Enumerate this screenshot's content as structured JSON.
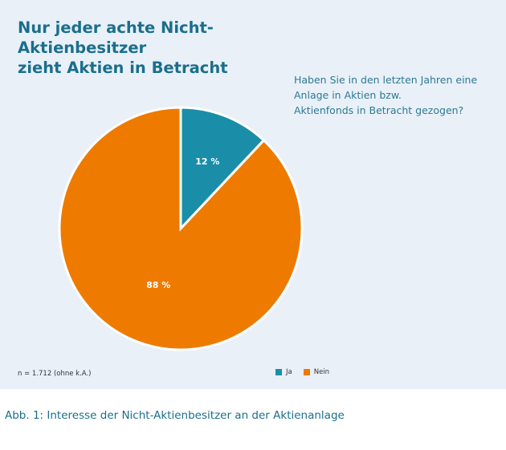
{
  "title_lines": [
    "Nur jeder achte Nicht-Aktienbesitzer",
    "zieht Aktien in Betracht"
  ],
  "question_lines": [
    "Haben Sie in den letzten Jahren eine",
    "Anlage in Aktien bzw.",
    "Aktienfonds in Betracht gezogen?"
  ],
  "note": "n = 1.712 (ohne k.A.)",
  "caption": "Abb. 1: Interesse der Nicht-Aktienbesitzer an der Aktienanlage",
  "colors": {
    "panel_background": "#e9f0f7",
    "title": "#1a6f8c",
    "ja": "#1a8ea8",
    "nein": "#ee7a00"
  },
  "chart_data": {
    "type": "pie",
    "slices": [
      {
        "name": "Ja",
        "value": 12,
        "label": "12 %",
        "color": "#1a8ea8"
      },
      {
        "name": "Nein",
        "value": 88,
        "label": "88 %",
        "color": "#ee7a00"
      }
    ],
    "legend": [
      "Ja",
      "Nein"
    ],
    "legend_position": "bottom-right",
    "start": "top, clockwise"
  }
}
